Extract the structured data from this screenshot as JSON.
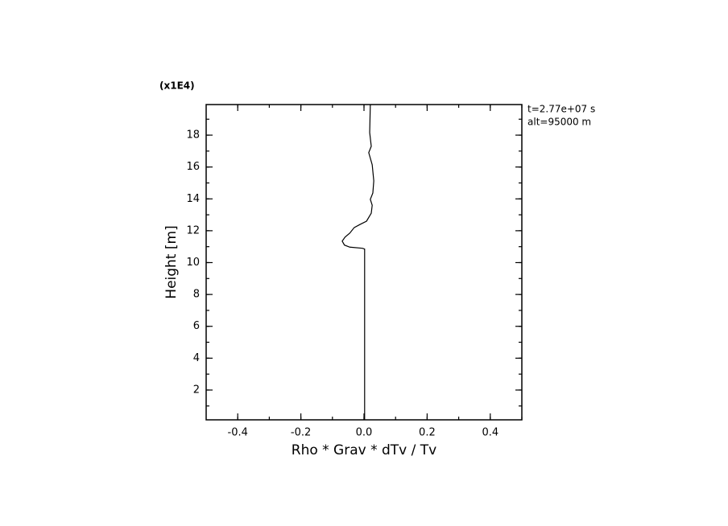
{
  "chart_data": {
    "type": "line",
    "multiplier_label": "(x1E4)",
    "annotations": [
      "t=2.77e+07 s",
      "alt=95000 m"
    ],
    "xlabel": "Rho * Grav * dTv / Tv",
    "ylabel": "Height [m]",
    "xlim": [
      -0.5,
      0.5
    ],
    "ylim": [
      0.13,
      19.92
    ],
    "xticks": [
      -0.4,
      -0.2,
      {
        "value": 0,
        "label": "0.0"
      },
      0.2,
      0.4
    ],
    "yticks": [
      2,
      4,
      6,
      8,
      10,
      12,
      14,
      16,
      18
    ],
    "series": [
      {
        "color": "#000000",
        "x": [
          0.002,
          0.002,
          -0.005,
          -0.045,
          -0.062,
          -0.069,
          -0.06,
          -0.045,
          -0.031,
          -0.012,
          0.008,
          0.023,
          0.026,
          0.02,
          0.028,
          0.031,
          0.026,
          0.015,
          0.023,
          0.018,
          0.02
        ],
        "values": [
          0.13,
          10.85,
          10.9,
          10.97,
          11.1,
          11.35,
          11.6,
          11.85,
          12.2,
          12.4,
          12.6,
          13.1,
          13.6,
          13.97,
          14.37,
          15.13,
          16.14,
          16.9,
          17.3,
          18.16,
          19.9
        ]
      }
    ]
  }
}
